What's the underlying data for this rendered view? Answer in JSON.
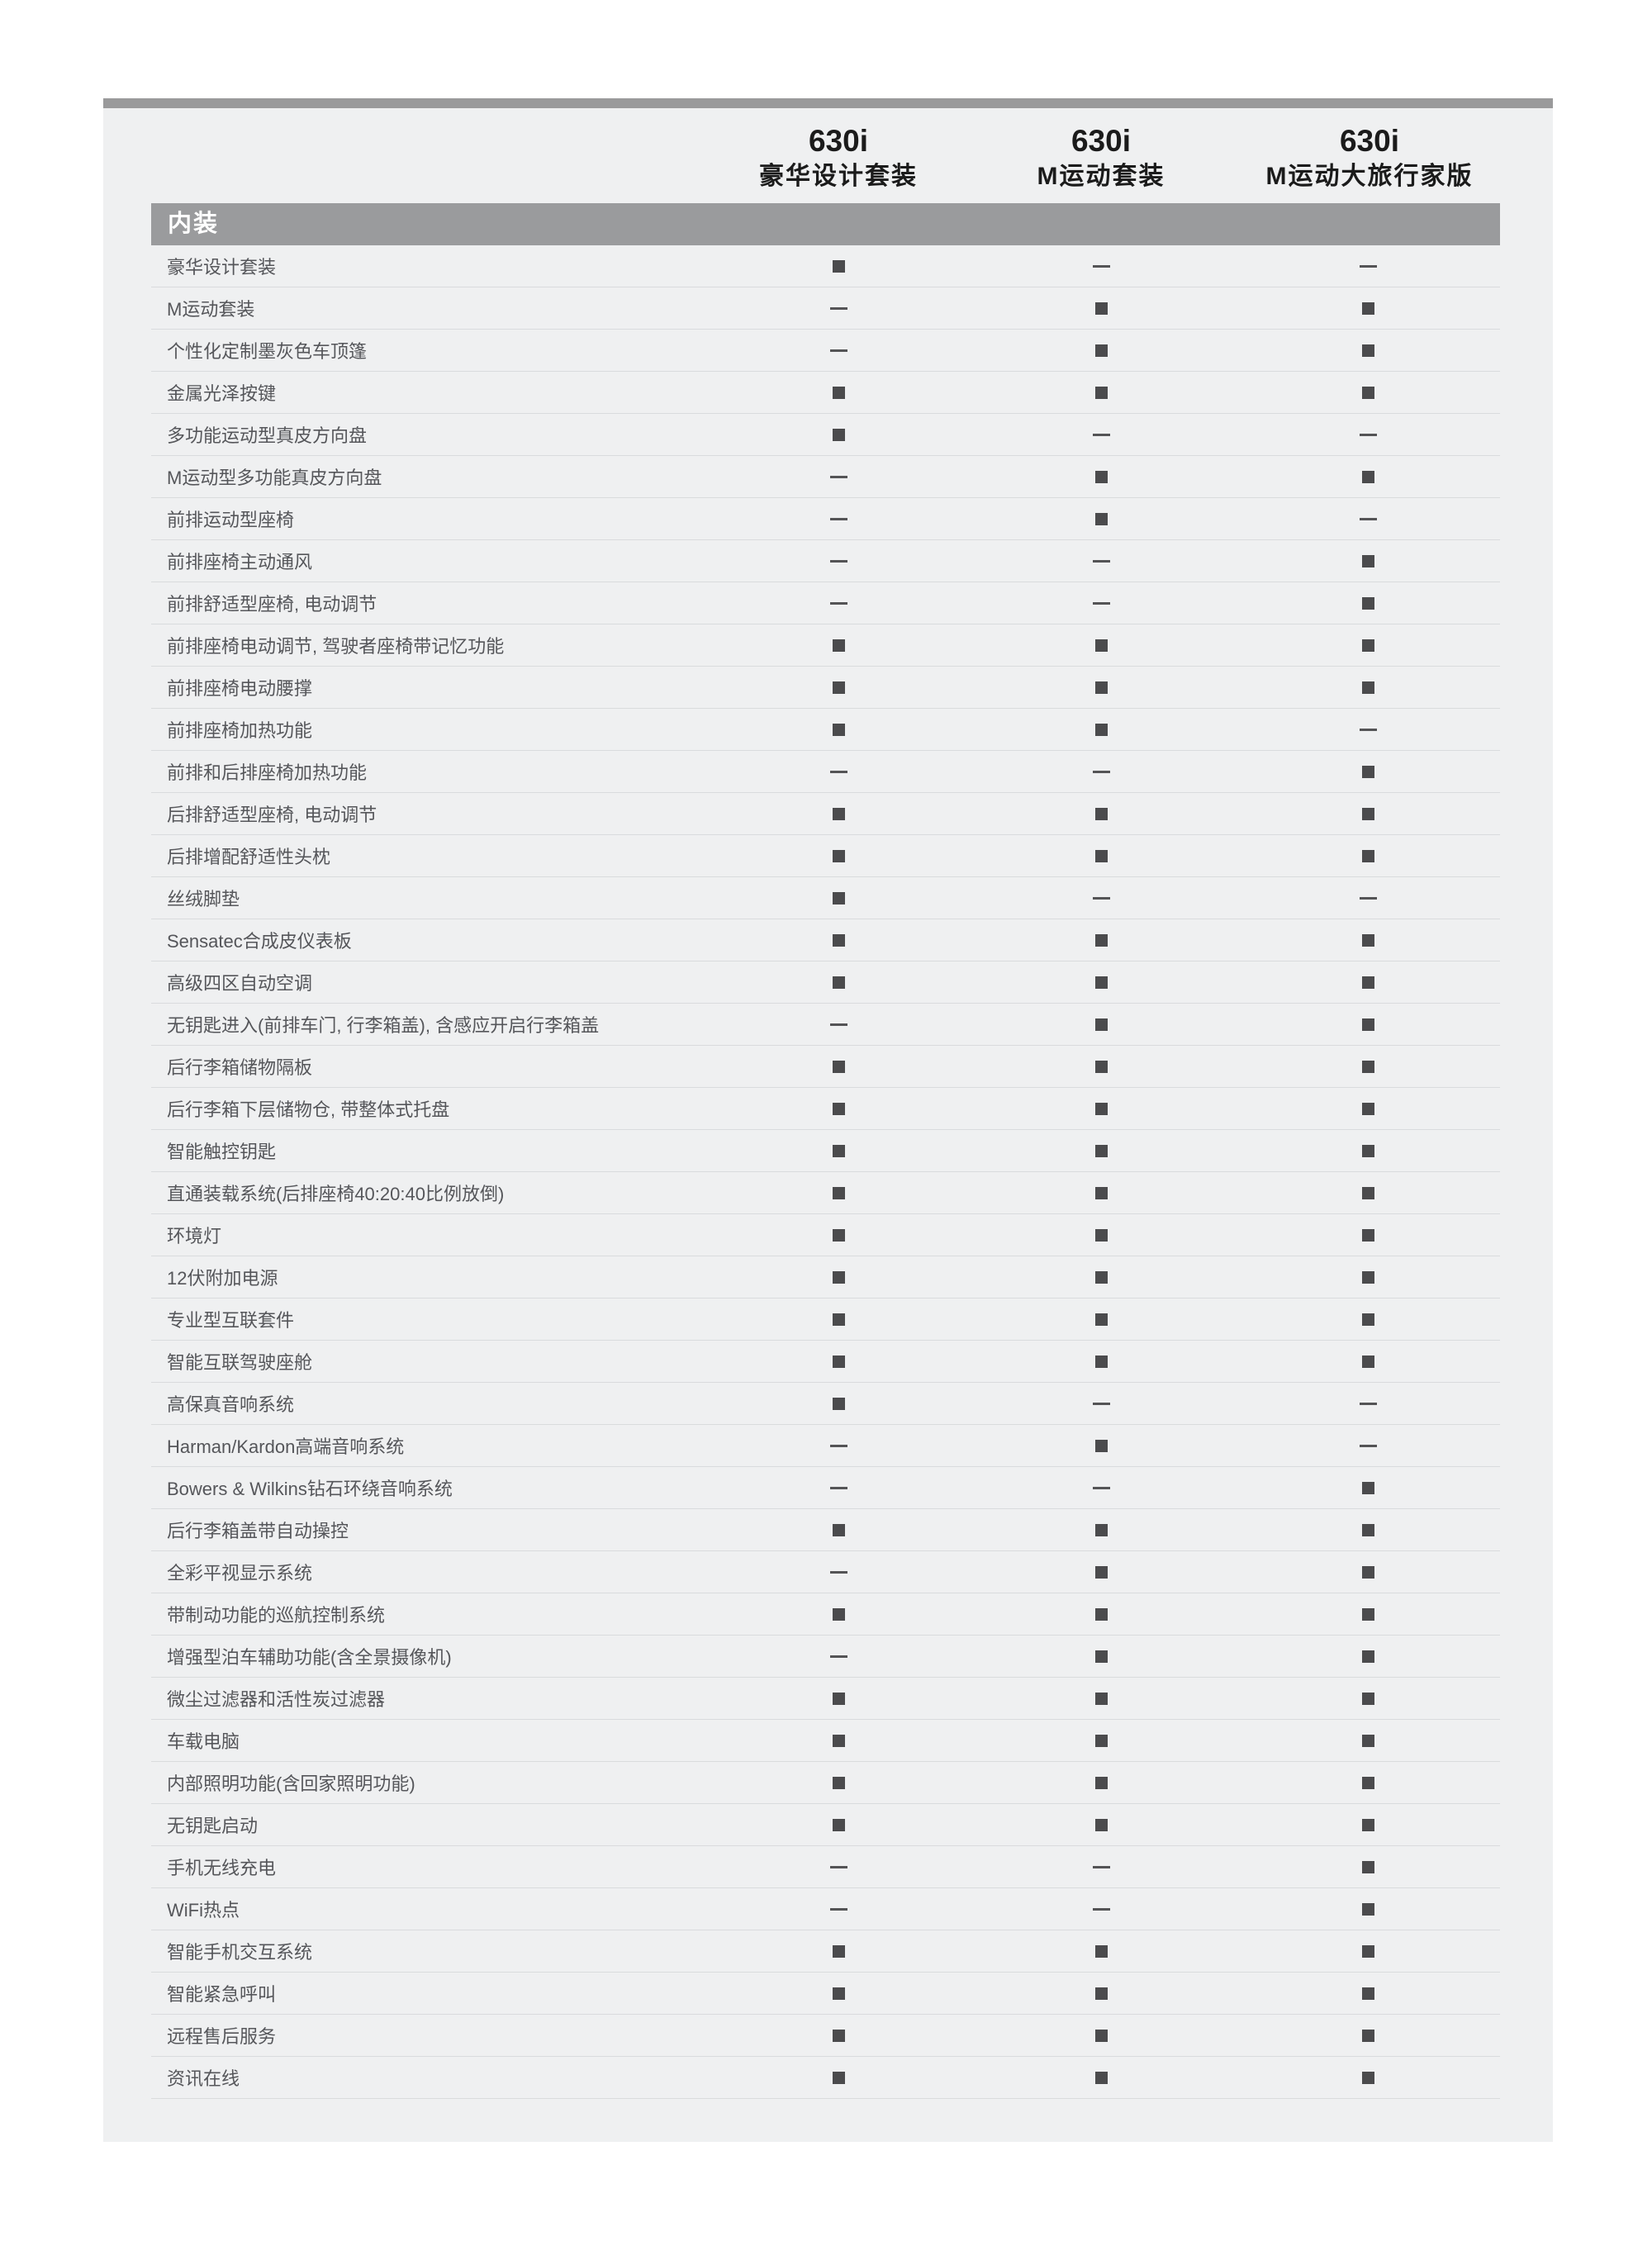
{
  "header": {
    "columns": [
      {
        "model": "630i",
        "trim": "豪华设计套装"
      },
      {
        "model": "630i",
        "trim": "M运动套装"
      },
      {
        "model": "630i",
        "trim": "M运动大旅行家版"
      }
    ]
  },
  "section": {
    "title": "内装"
  },
  "legend": {
    "available_symbol": "■",
    "not_available_symbol": "—"
  },
  "colors": {
    "card_background": "#eff0f1",
    "top_bar": "#9a9a9b",
    "section_bar": "#9a9b9d",
    "square_mark": "#4b4b4d",
    "dash_mark": "#545456",
    "label_text": "#55565a",
    "separator": "#d9dbdd",
    "header_text": "#1b1b1b"
  },
  "rows": [
    {
      "label": "豪华设计套装",
      "values": [
        1,
        0,
        0
      ]
    },
    {
      "label": "M运动套装",
      "values": [
        0,
        1,
        1
      ]
    },
    {
      "label": "个性化定制墨灰色车顶篷",
      "values": [
        0,
        1,
        1
      ]
    },
    {
      "label": "金属光泽按键",
      "values": [
        1,
        1,
        1
      ]
    },
    {
      "label": "多功能运动型真皮方向盘",
      "values": [
        1,
        0,
        0
      ]
    },
    {
      "label": "M运动型多功能真皮方向盘",
      "values": [
        0,
        1,
        1
      ]
    },
    {
      "label": "前排运动型座椅",
      "values": [
        0,
        1,
        0
      ]
    },
    {
      "label": "前排座椅主动通风",
      "values": [
        0,
        0,
        1
      ]
    },
    {
      "label": "前排舒适型座椅, 电动调节",
      "values": [
        0,
        0,
        1
      ]
    },
    {
      "label": "前排座椅电动调节, 驾驶者座椅带记忆功能",
      "values": [
        1,
        1,
        1
      ]
    },
    {
      "label": "前排座椅电动腰撑",
      "values": [
        1,
        1,
        1
      ]
    },
    {
      "label": "前排座椅加热功能",
      "values": [
        1,
        1,
        0
      ]
    },
    {
      "label": "前排和后排座椅加热功能",
      "values": [
        0,
        0,
        1
      ]
    },
    {
      "label": "后排舒适型座椅, 电动调节",
      "values": [
        1,
        1,
        1
      ]
    },
    {
      "label": "后排增配舒适性头枕",
      "values": [
        1,
        1,
        1
      ]
    },
    {
      "label": "丝绒脚垫",
      "values": [
        1,
        0,
        0
      ]
    },
    {
      "label": "Sensatec合成皮仪表板",
      "values": [
        1,
        1,
        1
      ]
    },
    {
      "label": "高级四区自动空调",
      "values": [
        1,
        1,
        1
      ]
    },
    {
      "label": "无钥匙进入(前排车门, 行李箱盖), 含感应开启行李箱盖",
      "values": [
        0,
        1,
        1
      ]
    },
    {
      "label": "后行李箱储物隔板",
      "values": [
        1,
        1,
        1
      ]
    },
    {
      "label": "后行李箱下层储物仓, 带整体式托盘",
      "values": [
        1,
        1,
        1
      ]
    },
    {
      "label": "智能触控钥匙",
      "values": [
        1,
        1,
        1
      ]
    },
    {
      "label": "直通装载系统(后排座椅40:20:40比例放倒)",
      "values": [
        1,
        1,
        1
      ]
    },
    {
      "label": "环境灯",
      "values": [
        1,
        1,
        1
      ]
    },
    {
      "label": "12伏附加电源",
      "values": [
        1,
        1,
        1
      ]
    },
    {
      "label": "专业型互联套件",
      "values": [
        1,
        1,
        1
      ]
    },
    {
      "label": "智能互联驾驶座舱",
      "values": [
        1,
        1,
        1
      ]
    },
    {
      "label": "高保真音响系统",
      "values": [
        1,
        0,
        0
      ]
    },
    {
      "label": "Harman/Kardon高端音响系统",
      "values": [
        0,
        1,
        0
      ]
    },
    {
      "label": "Bowers & Wilkins钻石环绕音响系统",
      "values": [
        0,
        0,
        1
      ]
    },
    {
      "label": "后行李箱盖带自动操控",
      "values": [
        1,
        1,
        1
      ]
    },
    {
      "label": "全彩平视显示系统",
      "values": [
        0,
        1,
        1
      ]
    },
    {
      "label": "带制动功能的巡航控制系统",
      "values": [
        1,
        1,
        1
      ]
    },
    {
      "label": "增强型泊车辅助功能(含全景摄像机)",
      "values": [
        0,
        1,
        1
      ]
    },
    {
      "label": "微尘过滤器和活性炭过滤器",
      "values": [
        1,
        1,
        1
      ]
    },
    {
      "label": "车载电脑",
      "values": [
        1,
        1,
        1
      ]
    },
    {
      "label": "内部照明功能(含回家照明功能)",
      "values": [
        1,
        1,
        1
      ]
    },
    {
      "label": "无钥匙启动",
      "values": [
        1,
        1,
        1
      ]
    },
    {
      "label": "手机无线充电",
      "values": [
        0,
        0,
        1
      ]
    },
    {
      "label": "WiFi热点",
      "values": [
        0,
        0,
        1
      ]
    },
    {
      "label": "智能手机交互系统",
      "values": [
        1,
        1,
        1
      ]
    },
    {
      "label": "智能紧急呼叫",
      "values": [
        1,
        1,
        1
      ]
    },
    {
      "label": "远程售后服务",
      "values": [
        1,
        1,
        1
      ]
    },
    {
      "label": "资讯在线",
      "values": [
        1,
        1,
        1
      ]
    }
  ]
}
